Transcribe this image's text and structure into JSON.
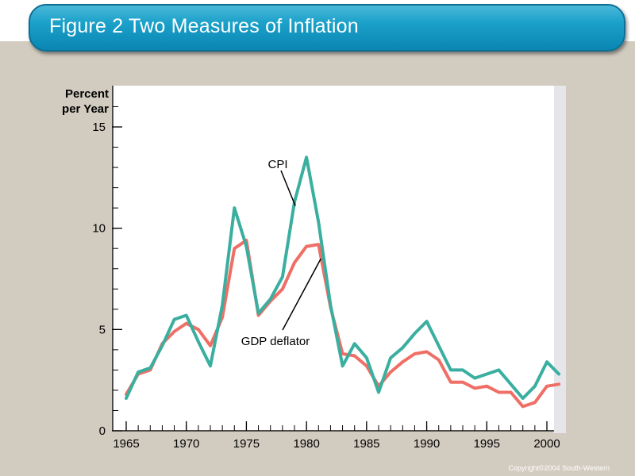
{
  "header": {
    "title": "Figure 2 Two Measures of Inflation"
  },
  "footer": {
    "copyright": "Copyright©2004  South-Western"
  },
  "colors": {
    "title_bar": "#0a86b3",
    "background": "#d2cbc0",
    "plot_bg": "#ffffff",
    "cpi": "#3aafa0",
    "gdp": "#ef6f66"
  },
  "chart_data": {
    "type": "line",
    "title": "Figure 2 Two Measures of Inflation",
    "xlabel": "",
    "ylabel_lines": [
      "Percent",
      "per Year"
    ],
    "xlim": [
      1965,
      2001
    ],
    "ylim": [
      0,
      15
    ],
    "y_ticks": [
      0,
      5,
      10,
      15
    ],
    "y_minor_step": 1,
    "x_ticks": [
      1965,
      1970,
      1975,
      1980,
      1985,
      1990,
      1995,
      2000
    ],
    "x_minor_step": 1,
    "grid": false,
    "x": [
      1965,
      1966,
      1967,
      1968,
      1969,
      1970,
      1971,
      1972,
      1973,
      1974,
      1975,
      1976,
      1977,
      1978,
      1979,
      1980,
      1981,
      1982,
      1983,
      1984,
      1985,
      1986,
      1987,
      1988,
      1989,
      1990,
      1991,
      1992,
      1993,
      1994,
      1995,
      1996,
      1997,
      1998,
      1999,
      2000,
      2001
    ],
    "series": [
      {
        "name": "CPI",
        "color": "#3aafa0",
        "values": [
          1.6,
          2.9,
          3.1,
          4.2,
          5.5,
          5.7,
          4.4,
          3.2,
          6.2,
          11.0,
          9.1,
          5.8,
          6.5,
          7.6,
          11.3,
          13.5,
          10.3,
          6.2,
          3.2,
          4.3,
          3.6,
          1.9,
          3.6,
          4.1,
          4.8,
          5.4,
          4.2,
          3.0,
          3.0,
          2.6,
          2.8,
          3.0,
          2.3,
          1.6,
          2.2,
          3.4,
          2.8
        ]
      },
      {
        "name": "GDP deflator",
        "color": "#ef6f66",
        "values": [
          1.8,
          2.8,
          3.0,
          4.3,
          4.9,
          5.3,
          5.0,
          4.2,
          5.6,
          9.0,
          9.4,
          5.7,
          6.4,
          7.0,
          8.3,
          9.1,
          9.2,
          6.1,
          3.8,
          3.7,
          3.2,
          2.2,
          2.9,
          3.4,
          3.8,
          3.9,
          3.5,
          2.4,
          2.4,
          2.1,
          2.2,
          1.9,
          1.9,
          1.2,
          1.4,
          2.2,
          2.3
        ]
      }
    ],
    "annotations": [
      {
        "text": "CPI",
        "series": "CPI"
      },
      {
        "text": "GDP deflator",
        "series": "GDP deflator"
      }
    ]
  }
}
